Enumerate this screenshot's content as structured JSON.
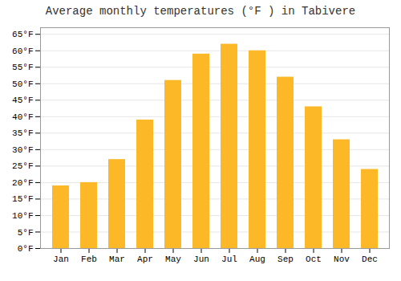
{
  "chart_data": {
    "type": "bar",
    "title": "Average monthly temperatures (°F ) in Tabivere",
    "categories": [
      "Jan",
      "Feb",
      "Mar",
      "Apr",
      "May",
      "Jun",
      "Jul",
      "Aug",
      "Sep",
      "Oct",
      "Nov",
      "Dec"
    ],
    "values": [
      19,
      20,
      27,
      39,
      51,
      59,
      62,
      60,
      52,
      43,
      33,
      24
    ],
    "color": "#FDB827",
    "ylim": [
      0,
      67
    ],
    "yticks": [
      {
        "value": 0,
        "label": "0°F"
      },
      {
        "value": 5,
        "label": "5°F"
      },
      {
        "value": 10,
        "label": "10°F"
      },
      {
        "value": 15,
        "label": "15°F"
      },
      {
        "value": 20,
        "label": "20°F"
      },
      {
        "value": 25,
        "label": "25°F"
      },
      {
        "value": 30,
        "label": "30°F"
      },
      {
        "value": 35,
        "label": "35°F"
      },
      {
        "value": 40,
        "label": "40°F"
      },
      {
        "value": 45,
        "label": "45°F"
      },
      {
        "value": 50,
        "label": "50°F"
      },
      {
        "value": 55,
        "label": "55°F"
      },
      {
        "value": 60,
        "label": "60°F"
      },
      {
        "value": 65,
        "label": "65°F"
      }
    ],
    "grid": true
  }
}
